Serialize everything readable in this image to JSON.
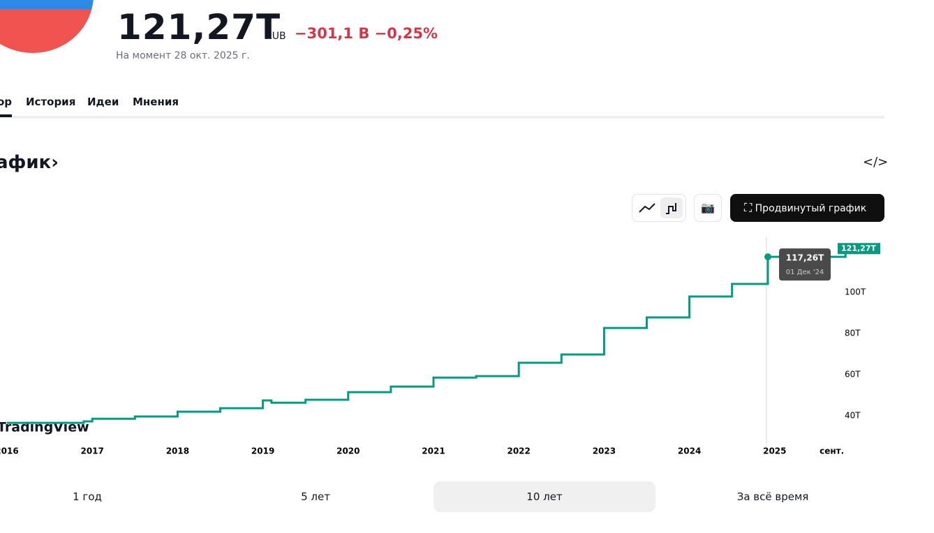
{
  "header": {
    "price": "121,27T",
    "currency": "RUB",
    "change": "−301,1 B −0,25%",
    "as_of": "На момент 28 окт. 2025 г."
  },
  "tabs": [
    "ор",
    "История",
    "Идеи",
    "Мнения"
  ],
  "section_title": "афик›",
  "advanced_button": "Продвинутый график",
  "watermark": "TradingView",
  "ranges": [
    "1 год",
    "5 лет",
    "10 лет",
    "За всё время"
  ],
  "chart_data": {
    "type": "step",
    "color": "#089981",
    "x": [
      2016.0,
      2016.9,
      2017.0,
      2017.5,
      2018.0,
      2018.5,
      2019.0,
      2019.1,
      2019.5,
      2020.0,
      2020.5,
      2021.0,
      2021.5,
      2022.0,
      2022.5,
      2023.0,
      2023.5,
      2024.0,
      2024.5,
      2024.92,
      2025.83
    ],
    "values": [
      36.6,
      37.3,
      38.6,
      39.7,
      42.0,
      43.7,
      47.5,
      46.4,
      47.8,
      51.5,
      54.2,
      58.6,
      59.3,
      65.8,
      69.8,
      82.7,
      87.8,
      98.0,
      104.1,
      117.26,
      121.27
    ],
    "xlim": [
      2016,
      2025.95
    ],
    "xticks": [
      2016,
      2017,
      2018,
      2019,
      2020,
      2021,
      2022,
      2023,
      2024,
      2025,
      {
        "value": 2025.67,
        "label": "сент."
      }
    ],
    "ylim": [
      28.5,
      126.8
    ],
    "yticks": [
      {
        "value": 40,
        "label": "40T"
      },
      {
        "value": 60,
        "label": "60T"
      },
      {
        "value": 80,
        "label": "80T"
      },
      {
        "value": 100,
        "label": "100T"
      }
    ],
    "tooltip": {
      "label": "117,26T",
      "date": "01 Дек '24"
    },
    "last_value_label": "121,27T"
  }
}
